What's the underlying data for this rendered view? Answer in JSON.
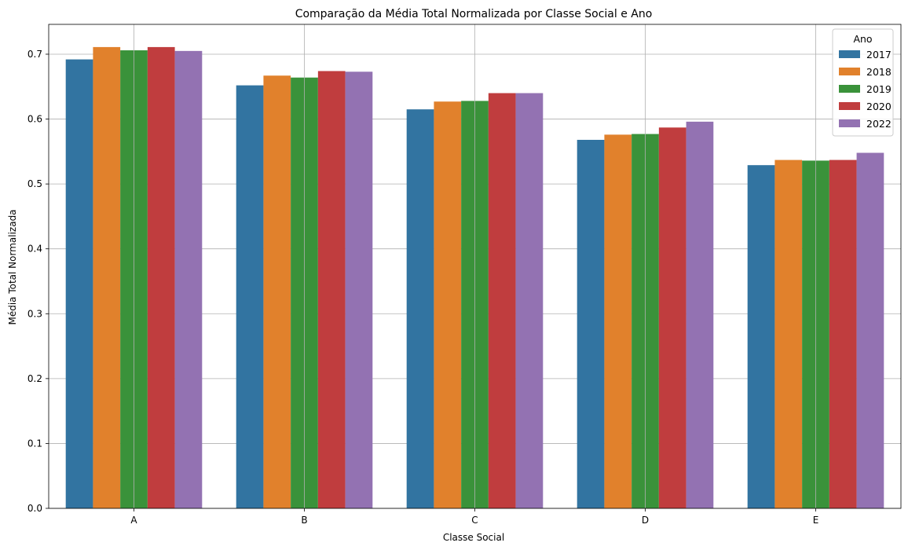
{
  "chart_data": {
    "type": "bar",
    "title": "Comparação da Média Total Normalizada por Classe Social e Ano",
    "xlabel": "Classe Social",
    "ylabel": "Média Total Normalizada",
    "categories": [
      "A",
      "B",
      "C",
      "D",
      "E"
    ],
    "ylim": [
      0,
      0.746
    ],
    "yticks": [
      0.0,
      0.1,
      0.2,
      0.3,
      0.4,
      0.5,
      0.6,
      0.7
    ],
    "ytick_labels": [
      "0.0",
      "0.1",
      "0.2",
      "0.3",
      "0.4",
      "0.5",
      "0.6",
      "0.7"
    ],
    "grid": true,
    "legend": {
      "title": "Ano",
      "placement": "top-right"
    },
    "series": [
      {
        "name": "2017",
        "color": "#3274a1",
        "values": [
          0.692,
          0.652,
          0.615,
          0.568,
          0.529
        ]
      },
      {
        "name": "2018",
        "color": "#e1812c",
        "values": [
          0.711,
          0.667,
          0.627,
          0.576,
          0.537
        ]
      },
      {
        "name": "2019",
        "color": "#3a923a",
        "values": [
          0.706,
          0.664,
          0.628,
          0.577,
          0.536
        ]
      },
      {
        "name": "2020",
        "color": "#c03d3e",
        "values": [
          0.711,
          0.674,
          0.64,
          0.587,
          0.537
        ]
      },
      {
        "name": "2022",
        "color": "#9372b2",
        "values": [
          0.705,
          0.673,
          0.64,
          0.596,
          0.548
        ]
      }
    ]
  }
}
